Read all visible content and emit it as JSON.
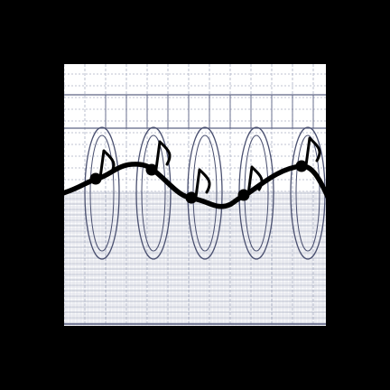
{
  "artwork": {
    "description_tokens": [],
    "colors": {
      "background": "#000000",
      "panel": "#ffffff",
      "grid_fine": "#aab0c4",
      "grid_dense": "#8f96ad",
      "grid_major": "#5d6384",
      "wave": "#4a5070",
      "curve": "#000000"
    },
    "notes": [
      {
        "name": "note-1"
      },
      {
        "name": "note-2"
      },
      {
        "name": "note-3"
      },
      {
        "name": "note-4"
      },
      {
        "name": "note-5"
      },
      {
        "name": "note-6"
      }
    ]
  }
}
